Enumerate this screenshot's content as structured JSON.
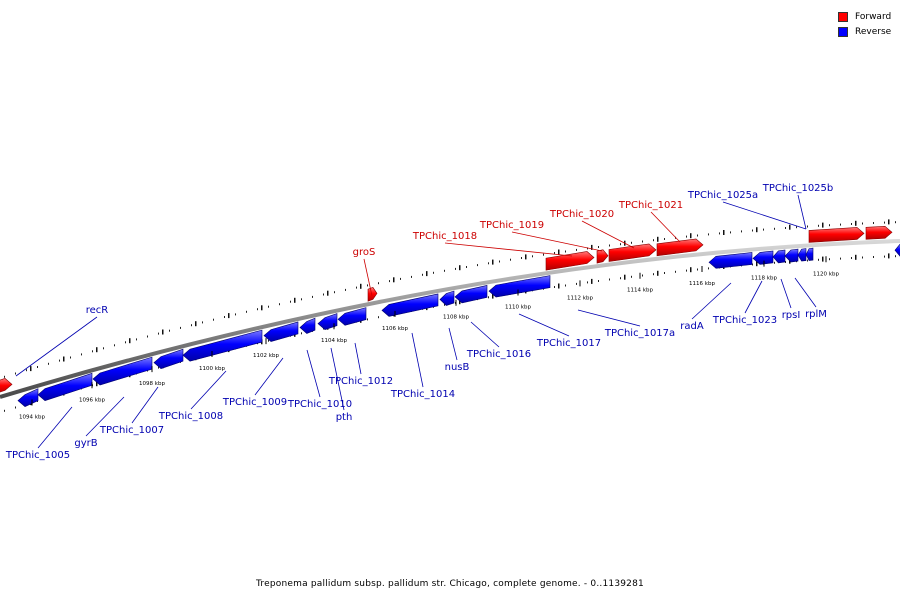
{
  "legend": {
    "forward": {
      "label": "Forward",
      "color": "#ff0000"
    },
    "reverse": {
      "label": "Reverse",
      "color": "#0000ff"
    }
  },
  "caption": "Treponema pallidum subsp. pallidum str. Chicago, complete genome. - 0..1139281",
  "ticks": [
    "1094 kbp",
    "1096 kbp",
    "1098 kbp",
    "1100 kbp",
    "1102 kbp",
    "1104 kbp",
    "1106 kbp",
    "1108 kbp",
    "1110 kbp",
    "1112 kbp",
    "1114 kbp",
    "1116 kbp",
    "1118 kbp",
    "1120 kbp"
  ],
  "forward_genes": [
    "recR",
    "groS",
    "TPChic_1018",
    "TPChic_1019",
    "TPChic_1020",
    "TPChic_1021"
  ],
  "reverse_genes": [
    "TPChic_1005",
    "gyrB",
    "TPChic_1007",
    "TPChic_1008",
    "TPChic_1009",
    "TPChic_1010",
    "pth",
    "TPChic_1012",
    "TPChic_1014",
    "nusB",
    "TPChic_1016",
    "TPChic_1017",
    "TPChic_1017a",
    "radA",
    "TPChic_1023",
    "rpsI",
    "rplM",
    "TPChic_1025a",
    "TPChic_1025b"
  ]
}
